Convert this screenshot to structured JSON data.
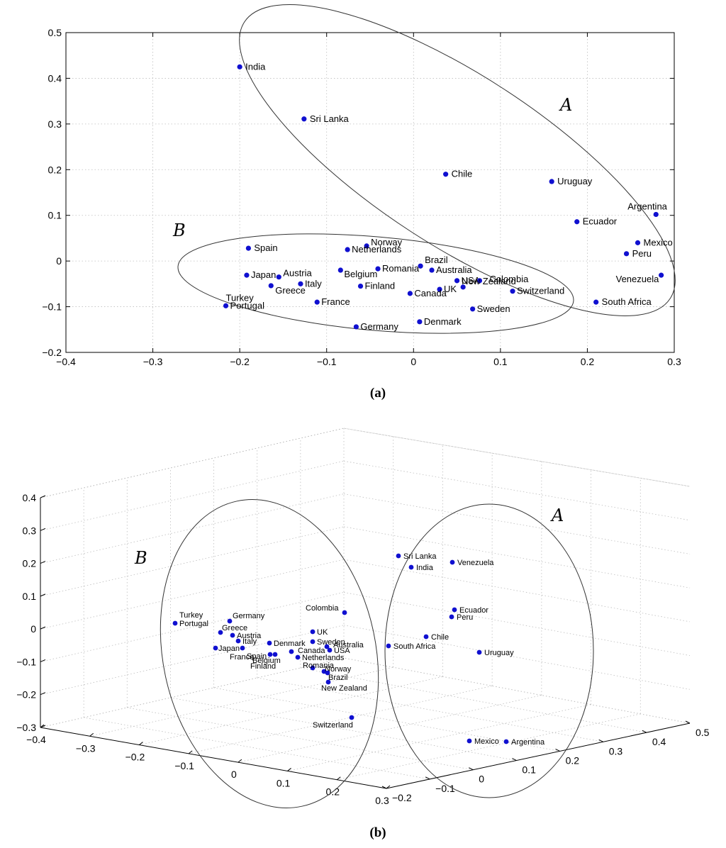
{
  "chart_data": [
    {
      "type": "scatter",
      "panel_label": "(a)",
      "xlim": [
        -0.4,
        0.3
      ],
      "ylim": [
        -0.2,
        0.5
      ],
      "xticks": [
        "−0.4",
        "−0.3",
        "−0.2",
        "−0.1",
        "0",
        "0.1",
        "0.2",
        "0.3"
      ],
      "yticks": [
        "−0.2",
        "−0.1",
        "0",
        "0.1",
        "0.2",
        "0.3",
        "0.4",
        "0.5"
      ],
      "grid": true,
      "group_labels": [
        "A",
        "B"
      ],
      "points": [
        {
          "name": "India",
          "x": -0.2,
          "y": 0.425
        },
        {
          "name": "Sri Lanka",
          "x": -0.126,
          "y": 0.311
        },
        {
          "name": "Chile",
          "x": 0.037,
          "y": 0.19
        },
        {
          "name": "Uruguay",
          "x": 0.159,
          "y": 0.174
        },
        {
          "name": "Argentina",
          "x": 0.279,
          "y": 0.102
        },
        {
          "name": "Ecuador",
          "x": 0.188,
          "y": 0.086
        },
        {
          "name": "Mexico",
          "x": 0.258,
          "y": 0.04
        },
        {
          "name": "Peru",
          "x": 0.245,
          "y": 0.016
        },
        {
          "name": "Venezuela",
          "x": 0.285,
          "y": -0.031
        },
        {
          "name": "South Africa",
          "x": 0.21,
          "y": -0.09
        },
        {
          "name": "Spain",
          "x": -0.19,
          "y": 0.028
        },
        {
          "name": "Norway",
          "x": -0.054,
          "y": 0.033
        },
        {
          "name": "Netherlands",
          "x": -0.076,
          "y": 0.025
        },
        {
          "name": "Brazil",
          "x": 0.008,
          "y": -0.011
        },
        {
          "name": "Romania",
          "x": -0.041,
          "y": -0.017
        },
        {
          "name": "Australia",
          "x": 0.021,
          "y": -0.02
        },
        {
          "name": "Japan",
          "x": -0.192,
          "y": -0.031
        },
        {
          "name": "Austria",
          "x": -0.155,
          "y": -0.035
        },
        {
          "name": "Belgium",
          "x": -0.084,
          "y": -0.02
        },
        {
          "name": "USA",
          "x": 0.05,
          "y": -0.043
        },
        {
          "name": "Colombia",
          "x": 0.076,
          "y": -0.043
        },
        {
          "name": "Greece",
          "x": -0.164,
          "y": -0.054
        },
        {
          "name": "Italy",
          "x": -0.13,
          "y": -0.05
        },
        {
          "name": "Finland",
          "x": -0.061,
          "y": -0.055
        },
        {
          "name": "UK",
          "x": 0.03,
          "y": -0.062
        },
        {
          "name": "New Zealand",
          "x": 0.057,
          "y": -0.057
        },
        {
          "name": "Canada",
          "x": -0.004,
          "y": -0.071
        },
        {
          "name": "Switzerland",
          "x": 0.114,
          "y": -0.066
        },
        {
          "name": "Turkey",
          "x": -0.216,
          "y": -0.098
        },
        {
          "name": "Portugal",
          "x": -0.216,
          "y": -0.098
        },
        {
          "name": "France",
          "x": -0.111,
          "y": -0.09
        },
        {
          "name": "Sweden",
          "x": 0.068,
          "y": -0.105
        },
        {
          "name": "Denmark",
          "x": 0.007,
          "y": -0.133
        },
        {
          "name": "Germany",
          "x": -0.066,
          "y": -0.144
        }
      ]
    },
    {
      "type": "scatter3d",
      "panel_label": "(b)",
      "zticks": [
        "−0.3",
        "−0.2",
        "−0.1",
        "0",
        "0.1",
        "0.2",
        "0.3",
        "0.4"
      ],
      "xticks": [
        "−0.4",
        "−0.3",
        "−0.2",
        "−0.1",
        "0",
        "0.1",
        "0.2",
        "0.3"
      ],
      "yticks": [
        "−0.2",
        "−0.1",
        "0",
        "0.1",
        "0.2",
        "0.3",
        "0.4",
        "0.5"
      ],
      "group_labels": [
        "A",
        "B"
      ],
      "points": [
        {
          "name": "Sri Lanka"
        },
        {
          "name": "India"
        },
        {
          "name": "Venezuela"
        },
        {
          "name": "Ecuador"
        },
        {
          "name": "Peru"
        },
        {
          "name": "Chile"
        },
        {
          "name": "South Africa"
        },
        {
          "name": "Uruguay"
        },
        {
          "name": "Mexico"
        },
        {
          "name": "Argentina"
        },
        {
          "name": "Turkey"
        },
        {
          "name": "Portugal"
        },
        {
          "name": "Germany"
        },
        {
          "name": "Greece"
        },
        {
          "name": "Austria"
        },
        {
          "name": "Italy"
        },
        {
          "name": "Japan"
        },
        {
          "name": "France"
        },
        {
          "name": "Spain"
        },
        {
          "name": "Denmark"
        },
        {
          "name": "Belgium"
        },
        {
          "name": "Finland"
        },
        {
          "name": "Canada"
        },
        {
          "name": "Netherlands"
        },
        {
          "name": "Romania"
        },
        {
          "name": "Colombia"
        },
        {
          "name": "UK"
        },
        {
          "name": "Sweden"
        },
        {
          "name": "Australia"
        },
        {
          "name": "USA"
        },
        {
          "name": "Norway"
        },
        {
          "name": "Brazil"
        },
        {
          "name": "New Zealand"
        },
        {
          "name": "Switzerland"
        }
      ]
    }
  ]
}
